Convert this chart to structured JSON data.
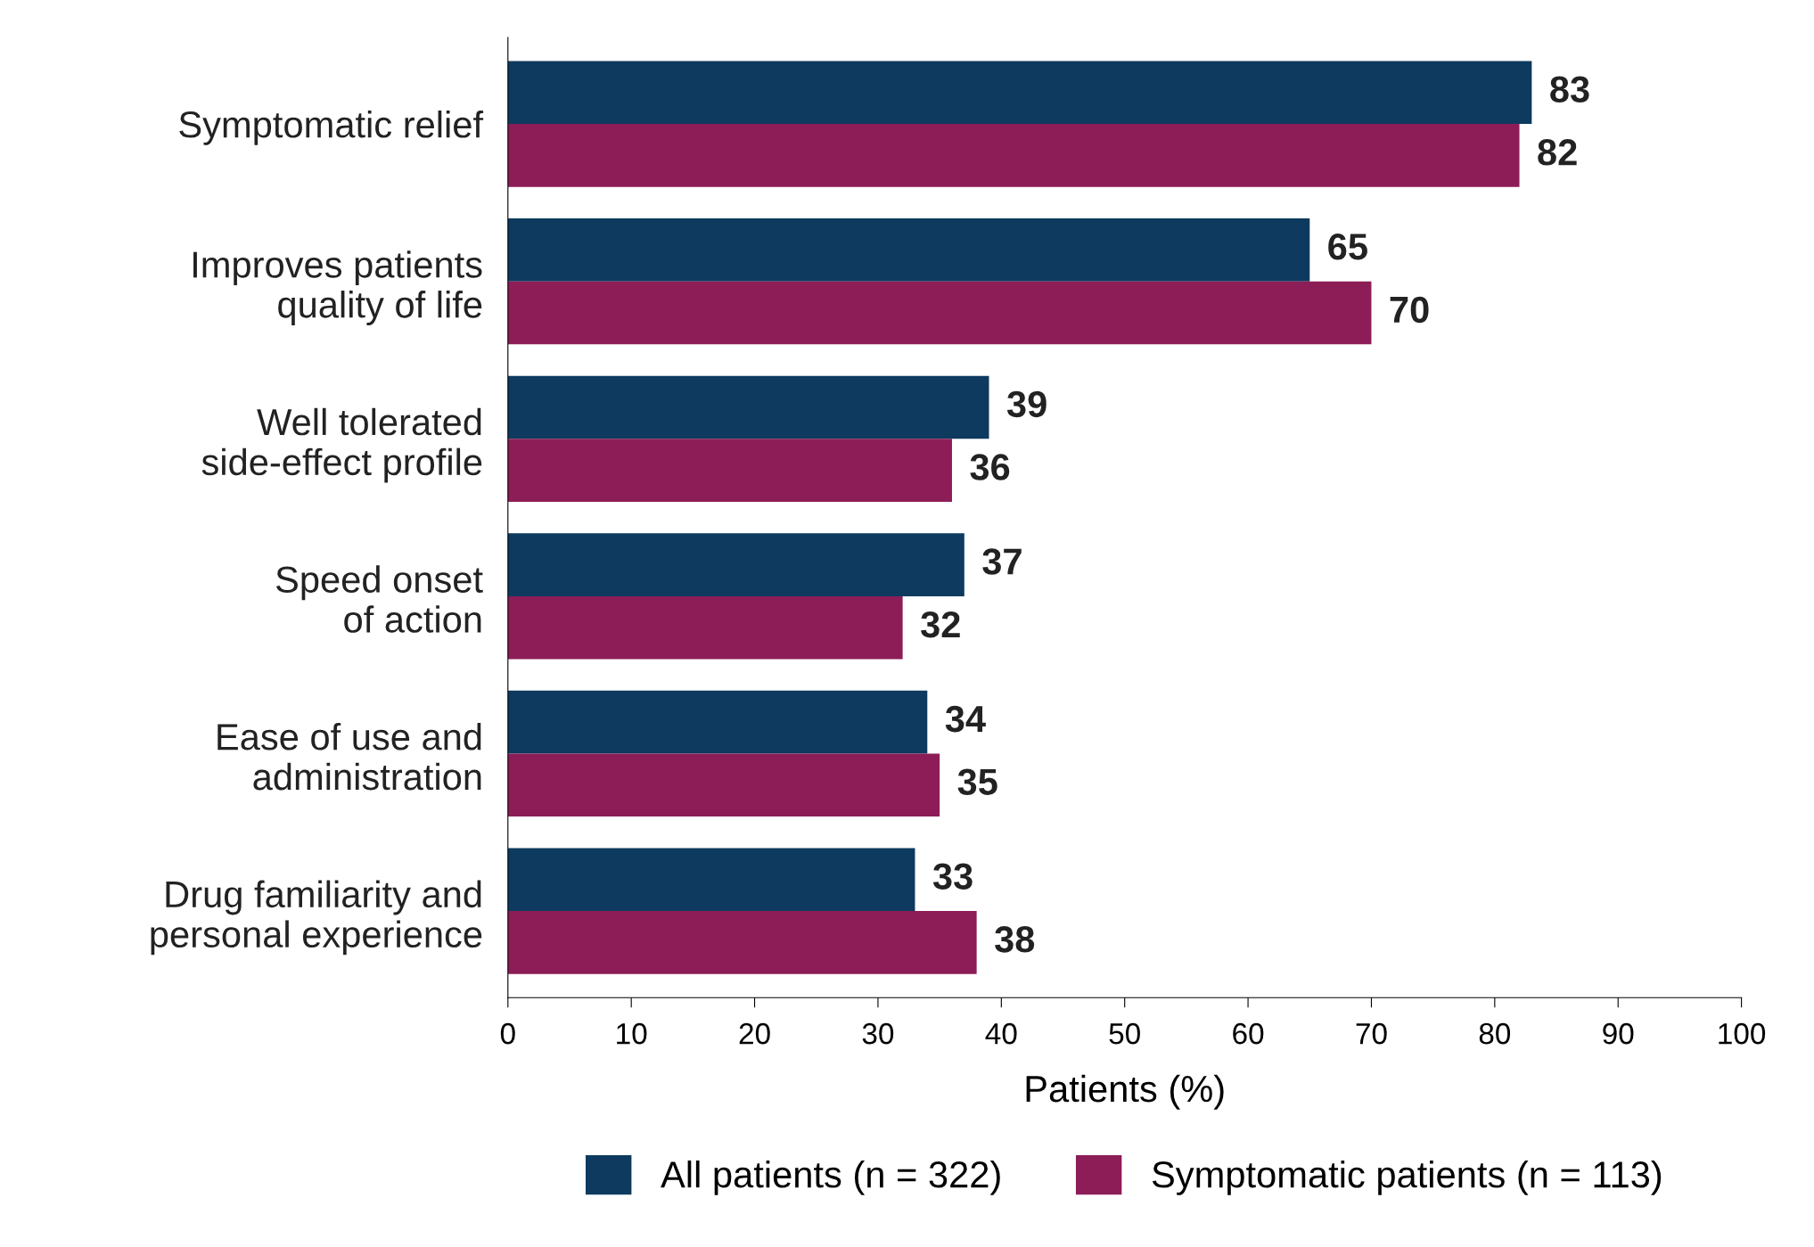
{
  "chart_data": {
    "type": "bar",
    "orientation": "horizontal",
    "xlabel": "Patients (%)",
    "categories": [
      "Symptomatic relief",
      "Improves patients\nquality of life",
      "Well tolerated\nside-effect profile",
      "Speed onset\nof action",
      "Ease of use and\nadministration",
      "Drug familiarity and\npersonal experience"
    ],
    "series": [
      {
        "name": "All patients (n = 322)",
        "color": "#0d3a5e",
        "values": [
          83,
          65,
          39,
          37,
          34,
          33
        ]
      },
      {
        "name": "Symptomatic patients (n = 113)",
        "color": "#8c1d57",
        "values": [
          82,
          70,
          36,
          32,
          35,
          38
        ]
      }
    ],
    "xlim": [
      0,
      100
    ],
    "xticks": [
      0,
      10,
      20,
      30,
      40,
      50,
      60,
      70,
      80,
      90,
      100
    ],
    "data_labels": true,
    "grid": false,
    "legend": "bottom"
  }
}
